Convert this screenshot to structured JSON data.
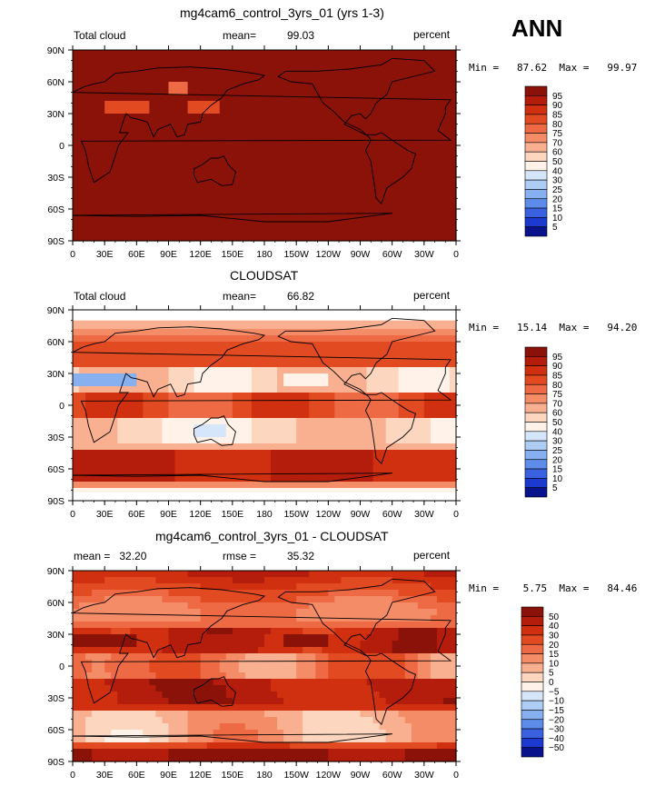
{
  "season": "ANN",
  "panels": [
    {
      "title": "mg4cam6_control_3yrs_01 (yrs 1-3)",
      "left_label": "Total cloud",
      "stat_label": "mean=",
      "stat_value": "99.03",
      "units": "percent",
      "min_max": "Min =   87.62  Max =   99.97",
      "palette": "full",
      "colorbar_labels": [
        "95",
        "90",
        "85",
        "80",
        "75",
        "70",
        "60",
        "50",
        "40",
        "30",
        "25",
        "20",
        "15",
        "10",
        "5"
      ]
    },
    {
      "title": "CLOUDSAT",
      "left_label": "Total cloud",
      "stat_label": "mean=",
      "stat_value": "66.82",
      "units": "percent",
      "min_max": "Min =   15.14  Max =   94.20",
      "palette": "full",
      "colorbar_labels": [
        "95",
        "90",
        "85",
        "80",
        "75",
        "70",
        "60",
        "50",
        "40",
        "30",
        "25",
        "20",
        "15",
        "10",
        "5"
      ]
    },
    {
      "title": "mg4cam6_control_3yrs_01 - CLOUDSAT",
      "left_label": "mean =   32.20",
      "stat_label": "rmse =",
      "stat_value": "35.32",
      "units": "percent",
      "min_max": "Min =    5.75  Max =   84.46",
      "palette": "diff",
      "colorbar_labels": [
        "50",
        "40",
        "30",
        "20",
        "15",
        "10",
        "5",
        "0",
        "−5",
        "−10",
        "−15",
        "−20",
        "−30",
        "−40",
        "−50"
      ]
    }
  ],
  "lat_ticks": [
    "90N",
    "60N",
    "30N",
    "0",
    "30S",
    "60S",
    "90S"
  ],
  "lon_ticks": [
    "0",
    "30E",
    "60E",
    "90E",
    "120E",
    "150E",
    "180",
    "150W",
    "120W",
    "90W",
    "60W",
    "30W",
    "0"
  ],
  "colors": {
    "full": [
      "#8a1208",
      "#b41c0c",
      "#d0300f",
      "#e24a22",
      "#ee6a44",
      "#f58c68",
      "#f8b090",
      "#fcd6bf",
      "#fff2e8",
      "#d6e6fa",
      "#aecdf5",
      "#86b0ef",
      "#5d8cea",
      "#3a62e0",
      "#1c3ad0",
      "#08128a"
    ],
    "diff": [
      "#8a1208",
      "#b41c0c",
      "#d0300f",
      "#e24a22",
      "#ee6a44",
      "#f58c68",
      "#f8b090",
      "#fcd6bf",
      "#fff2e8",
      "#d6e6fa",
      "#aecdf5",
      "#86b0ef",
      "#5d8cea",
      "#3a62e0",
      "#1c3ad0",
      "#08128a"
    ]
  },
  "chart_data": [
    {
      "type": "heatmap",
      "title": "mg4cam6_control_3yrs_01 (yrs 1-3)",
      "variable": "Total cloud",
      "units": "percent",
      "mean": 99.03,
      "min": 87.62,
      "max": 99.97,
      "xlim": [
        0,
        360
      ],
      "ylim": [
        -90,
        90
      ],
      "levels": [
        5,
        10,
        15,
        20,
        25,
        30,
        40,
        50,
        60,
        70,
        75,
        80,
        85,
        90,
        95
      ]
    },
    {
      "type": "heatmap",
      "title": "CLOUDSAT",
      "variable": "Total cloud",
      "units": "percent",
      "mean": 66.82,
      "min": 15.14,
      "max": 94.2,
      "xlim": [
        0,
        360
      ],
      "ylim": [
        -90,
        90
      ],
      "levels": [
        5,
        10,
        15,
        20,
        25,
        30,
        40,
        50,
        60,
        70,
        75,
        80,
        85,
        90,
        95
      ]
    },
    {
      "type": "heatmap",
      "title": "mg4cam6_control_3yrs_01 - CLOUDSAT",
      "units": "percent",
      "mean": 32.2,
      "rmse": 35.32,
      "min": 5.75,
      "max": 84.46,
      "xlim": [
        0,
        360
      ],
      "ylim": [
        -90,
        90
      ],
      "levels": [
        -50,
        -40,
        -30,
        -20,
        -15,
        -10,
        -5,
        0,
        5,
        10,
        15,
        20,
        30,
        40,
        50
      ]
    }
  ]
}
